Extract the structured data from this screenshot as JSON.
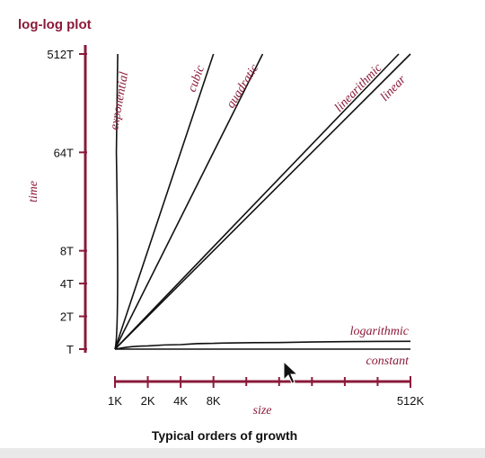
{
  "chart_data": {
    "type": "line",
    "title": "log-log plot",
    "xlabel": "size",
    "ylabel": "time",
    "caption": "Typical orders of growth",
    "x_scale": "log2",
    "y_scale": "log2",
    "x_ticks": [
      {
        "value": 1000,
        "label": "1K"
      },
      {
        "value": 2000,
        "label": "2K"
      },
      {
        "value": 4000,
        "label": "4K"
      },
      {
        "value": 8000,
        "label": "8K"
      },
      {
        "value": 512000,
        "label": "512K"
      }
    ],
    "x_minor_ticks": [
      16000,
      32000,
      64000,
      128000,
      256000
    ],
    "y_ticks": [
      {
        "value": 1,
        "label": "T"
      },
      {
        "value": 2,
        "label": "2T"
      },
      {
        "value": 4,
        "label": "4T"
      },
      {
        "value": 8,
        "label": "8T"
      },
      {
        "value": 64,
        "label": "64T"
      },
      {
        "value": 512,
        "label": "512T"
      }
    ],
    "xlim": [
      1000,
      512000
    ],
    "ylim": [
      1,
      512
    ],
    "series": [
      {
        "name": "constant",
        "x": [
          1000,
          512000
        ],
        "y": [
          1,
          1
        ]
      },
      {
        "name": "logarithmic",
        "x": [
          1000,
          2000,
          4000,
          8000,
          32000,
          512000
        ],
        "y": [
          1,
          1.07,
          1.1,
          1.13,
          1.15,
          1.18
        ]
      },
      {
        "name": "linear",
        "x": [
          1000,
          512000
        ],
        "y": [
          1,
          512
        ]
      },
      {
        "name": "linearithmic",
        "x": [
          1000,
          400000
        ],
        "y": [
          1,
          512
        ]
      },
      {
        "name": "quadratic",
        "x": [
          1000,
          22600
        ],
        "y": [
          1,
          512
        ]
      },
      {
        "name": "cubic",
        "x": [
          1000,
          8000
        ],
        "y": [
          1,
          512
        ]
      },
      {
        "name": "exponential",
        "x": [
          1000,
          1030,
          1060
        ],
        "y": [
          1,
          64,
          512
        ]
      }
    ],
    "legend": "labels on curves"
  },
  "colors": {
    "accent": "#8b1a3a",
    "curve": "#111111"
  },
  "cursor_icon": "arrow-cursor-icon"
}
